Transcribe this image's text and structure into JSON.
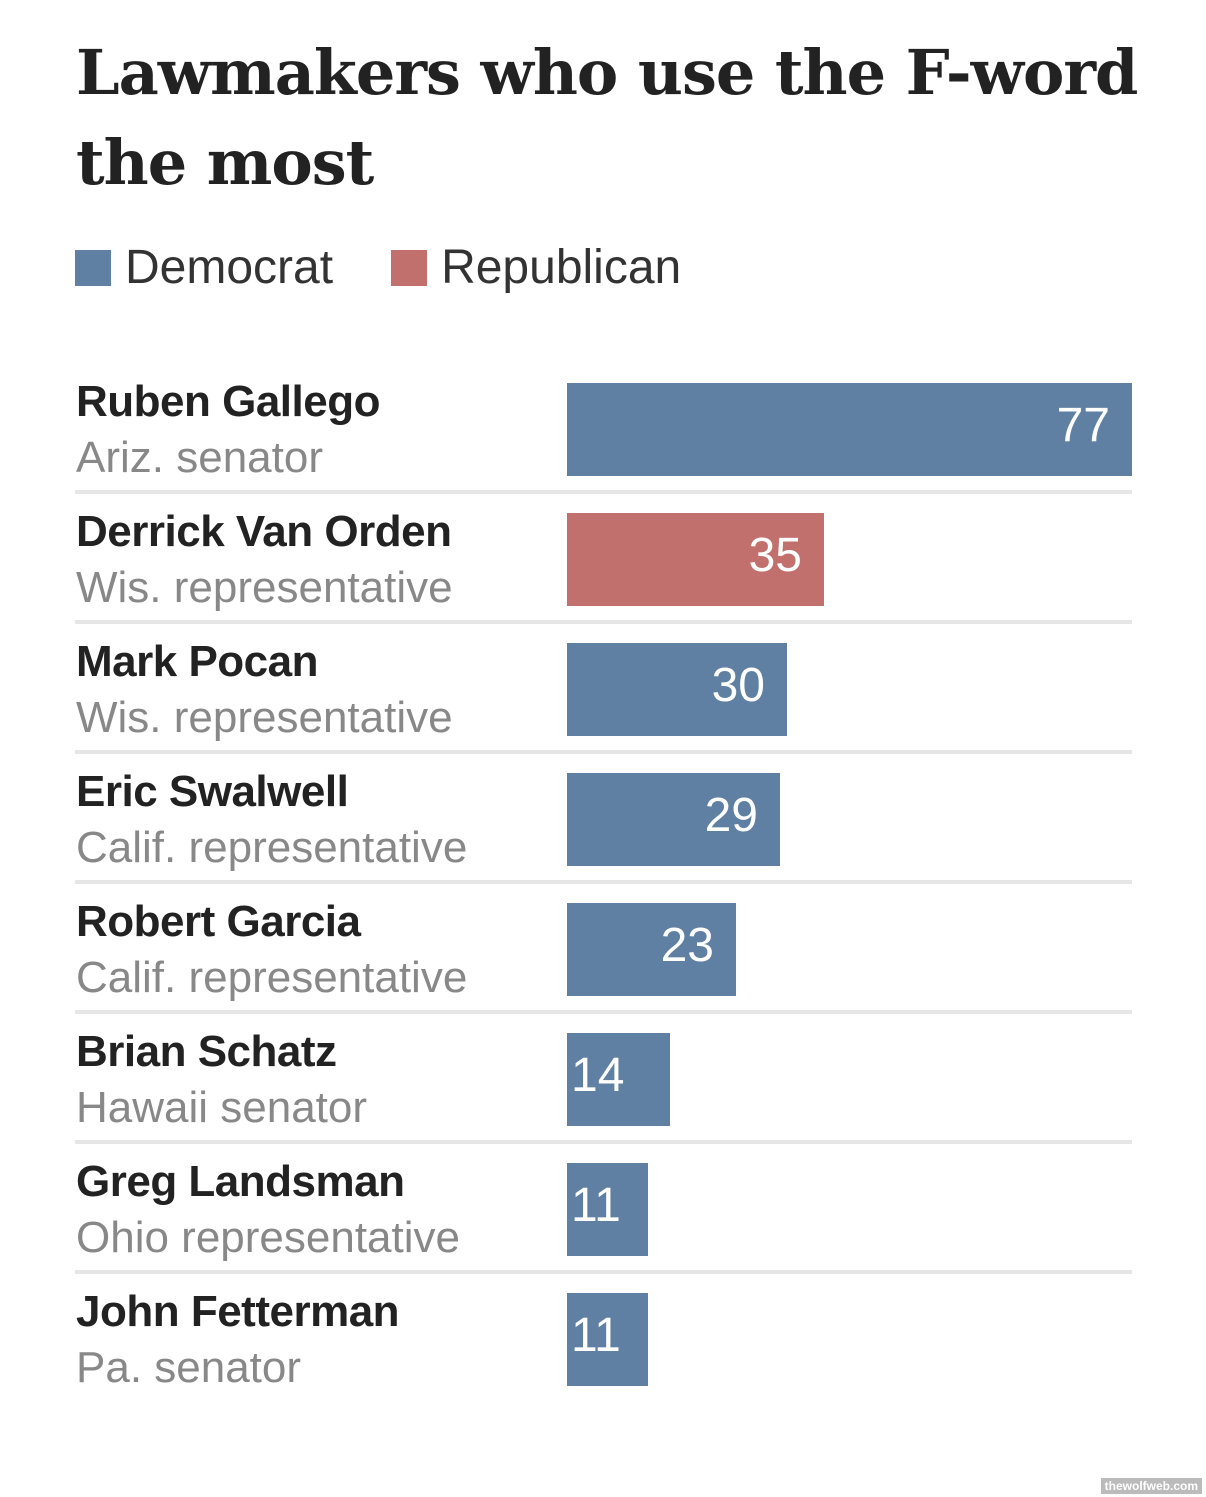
{
  "chart_data": {
    "type": "bar",
    "orientation": "horizontal",
    "title": "Lawmakers who use the F-word the most",
    "legend": [
      {
        "name": "Democrat",
        "color": "#5f80a3"
      },
      {
        "name": "Republican",
        "color": "#c2706d"
      }
    ],
    "legend_placement": "top-left",
    "grid": false,
    "xlim": [
      0,
      77
    ],
    "rows": [
      {
        "name": "Ruben Gallego",
        "role": "Ariz. senator",
        "party": "Democrat",
        "value": 77
      },
      {
        "name": "Derrick Van Orden",
        "role": "Wis. representative",
        "party": "Republican",
        "value": 35
      },
      {
        "name": "Mark Pocan",
        "role": "Wis. representative",
        "party": "Democrat",
        "value": 30
      },
      {
        "name": "Eric Swalwell",
        "role": "Calif. representative",
        "party": "Democrat",
        "value": 29
      },
      {
        "name": "Robert Garcia",
        "role": "Calif. representative",
        "party": "Democrat",
        "value": 23
      },
      {
        "name": "Brian Schatz",
        "role": "Hawaii senator",
        "party": "Democrat",
        "value": 14
      },
      {
        "name": "Greg Landsman",
        "role": "Ohio representative",
        "party": "Democrat",
        "value": 11
      },
      {
        "name": "John Fetterman",
        "role": "Pa. senator",
        "party": "Democrat",
        "value": 11
      }
    ]
  },
  "watermark": "thewolfweb.com"
}
